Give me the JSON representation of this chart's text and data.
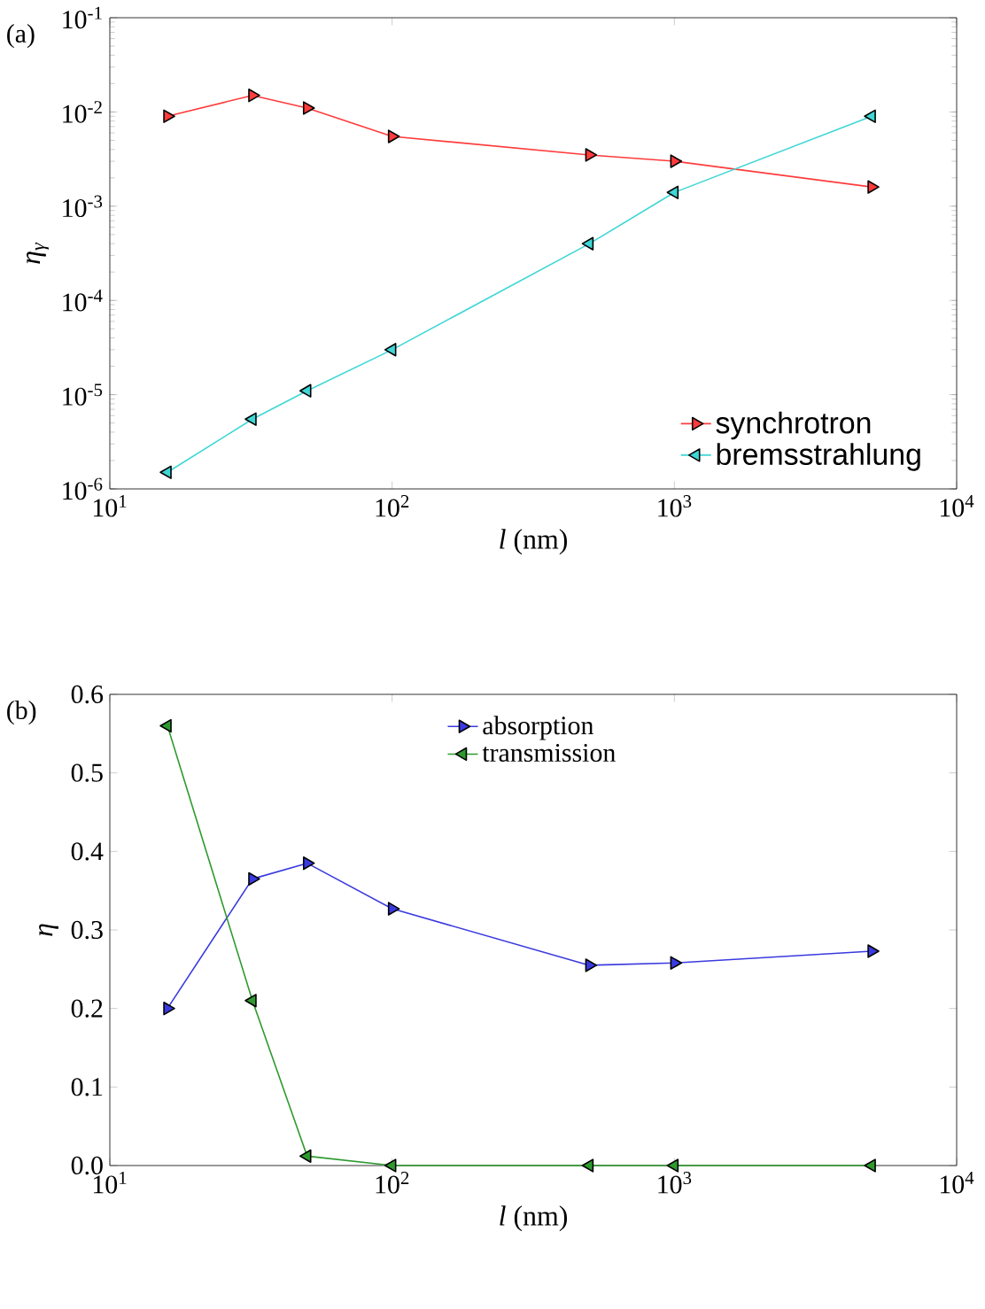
{
  "chart_data": [
    {
      "type": "line",
      "x": [
        16,
        32,
        50,
        100,
        500,
        1000,
        5000
      ],
      "log": "xy",
      "marker": "triangle",
      "legend": "bottom right",
      "xlabel": "*l* (nm)",
      "ylabel": "η$_{γ}$",
      "annotations": [
        "(a)"
      ],
      "xlim": [
        10,
        10000
      ],
      "ylim": [
        1e-06,
        0.1
      ],
      "xticks": [
        {
          "value": 10,
          "label": "10$^{1}$"
        },
        {
          "value": 100,
          "label": "10$^{2}$"
        },
        {
          "value": 1000,
          "label": "10$^{3}$"
        },
        {
          "value": 10000,
          "label": "10$^{4}$"
        }
      ],
      "yticks": [
        {
          "value": 1e-06,
          "label": "10$^{-6}$"
        },
        {
          "value": 1e-05,
          "label": "10$^{-5}$"
        },
        {
          "value": 0.0001,
          "label": "10$^{-4}$"
        },
        {
          "value": 0.001,
          "label": "10$^{-3}$"
        },
        {
          "value": 0.01,
          "label": "10$^{-2}$"
        },
        {
          "value": 0.1,
          "label": "10$^{-1}$"
        }
      ],
      "series": [
        {
          "name": "synchrotron",
          "color": "#ff3b3b",
          "values": [
            0.009,
            0.015,
            0.011,
            0.0055,
            0.0035,
            0.003,
            0.0016
          ]
        },
        {
          "name": "bremsstrahlung",
          "color": "#3fd6d6",
          "values": [
            1.5e-06,
            5.5e-06,
            1.1e-05,
            3e-05,
            0.0004,
            0.0014,
            0.009
          ]
        }
      ]
    },
    {
      "type": "line",
      "x": [
        16,
        32,
        50,
        100,
        500,
        1000,
        5000
      ],
      "log": "x",
      "marker": "triangle",
      "legend": "top",
      "xlabel": "*l* (nm)",
      "ylabel": "η",
      "annotations": [
        "(b)"
      ],
      "xlim": [
        10,
        10000
      ],
      "ylim": [
        0,
        0.6
      ],
      "xticks": [
        {
          "value": 10,
          "label": "10$^{1}$"
        },
        {
          "value": 100,
          "label": "10$^{2}$"
        },
        {
          "value": 1000,
          "label": "10$^{3}$"
        },
        {
          "value": 10000,
          "label": "10$^{4}$"
        }
      ],
      "yticks": [
        {
          "value": 0,
          "label": "0.0"
        },
        {
          "value": 0.1,
          "label": "0.1"
        },
        {
          "value": 0.2,
          "label": "0.2"
        },
        {
          "value": 0.3,
          "label": "0.3"
        },
        {
          "value": 0.4,
          "label": "0.4"
        },
        {
          "value": 0.5,
          "label": "0.5"
        },
        {
          "value": 0.6,
          "label": "0.6"
        }
      ],
      "series": [
        {
          "name": "absorption",
          "color": "#3a3ae0",
          "values": [
            0.2,
            0.365,
            0.385,
            0.327,
            0.255,
            0.258,
            0.273
          ]
        },
        {
          "name": "transmission",
          "color": "#2e9a2e",
          "values": [
            0.56,
            0.21,
            0.012,
            0.0,
            0.0,
            0.0,
            0.0
          ]
        }
      ]
    }
  ]
}
